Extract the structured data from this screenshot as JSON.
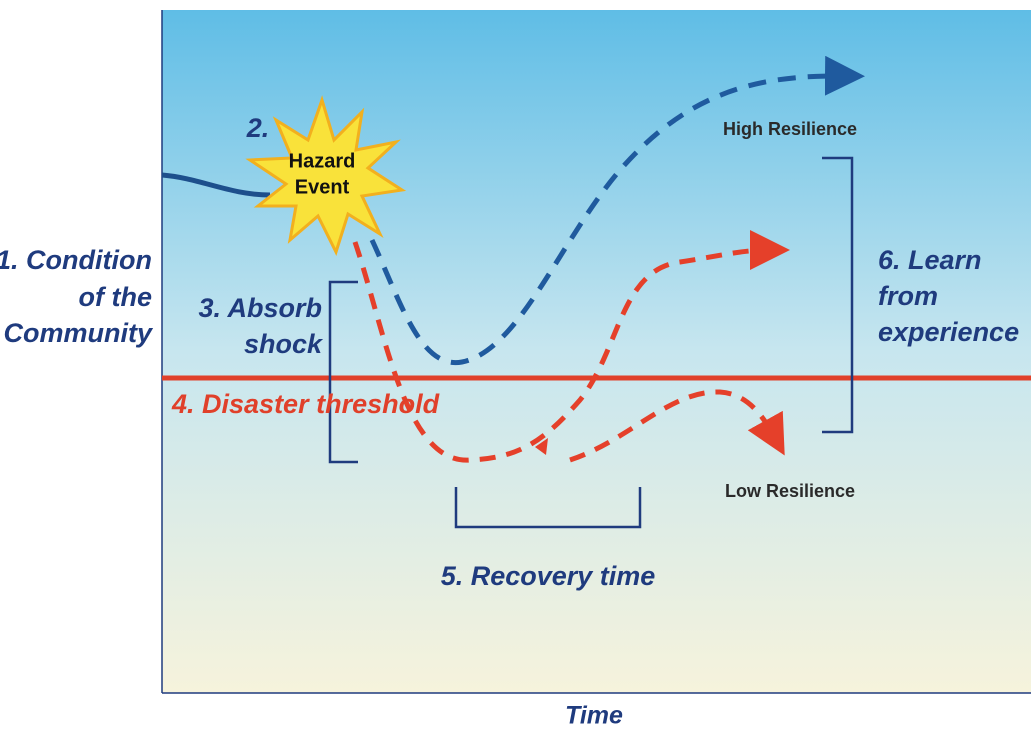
{
  "labels": {
    "condition": [
      "1. Condition",
      "of the",
      "Community"
    ],
    "hazard_number": "2.",
    "hazard_event": [
      "Hazard",
      "Event"
    ],
    "absorb": [
      "3. Absorb",
      "shock"
    ],
    "threshold": "4. Disaster threshold",
    "recovery": "5. Recovery time",
    "learn": [
      "6. Learn",
      "from",
      "experience"
    ],
    "high": "High Resilience",
    "low": "Low Resilience",
    "time": "Time"
  }
}
